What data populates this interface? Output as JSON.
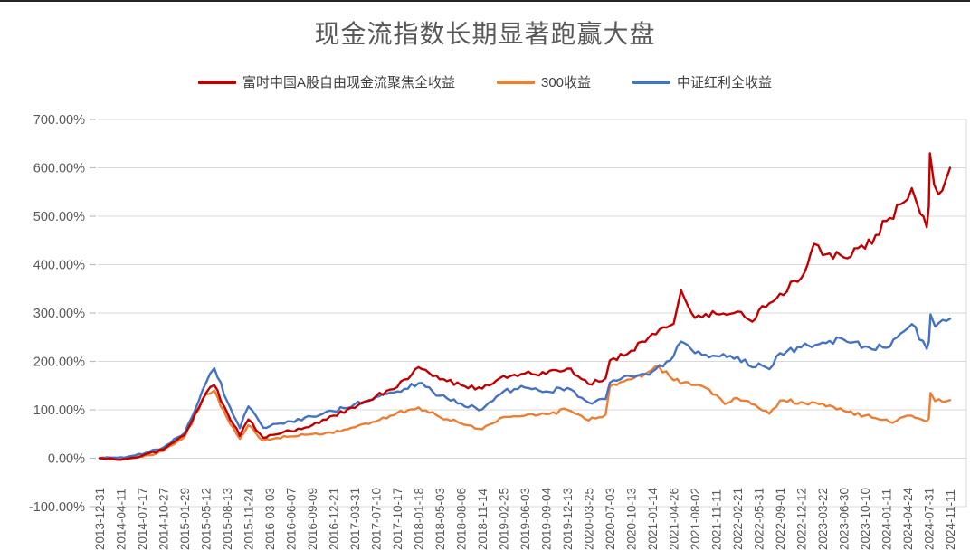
{
  "title": "现金流指数长期显著跑赢大盘",
  "colors": {
    "background": "#FFFFFF",
    "grid": "#D9D9D9",
    "tick": "#BFBFBF",
    "text": "#595959",
    "red_series": "#C00000",
    "orange_series": "#ED7D31",
    "blue_series": "#4472C4"
  },
  "legend": [
    {
      "label": "富时中国A股自由现金流聚焦全收益",
      "color": "#C00000"
    },
    {
      "label": "300收益",
      "color": "#ED7D31"
    },
    {
      "label": "中证红利全收益",
      "color": "#4472C4"
    }
  ],
  "chart_data": {
    "type": "line",
    "title": "现金流指数长期显著跑赢大盘",
    "xlabel": "",
    "ylabel": "",
    "ylim": [
      -100,
      700
    ],
    "grid": "horizontal",
    "legend_position": "top",
    "y_ticks": [
      "700.00%",
      "600.00%",
      "500.00%",
      "400.00%",
      "300.00%",
      "200.00%",
      "100.00%",
      "0.00%",
      "-100.00%"
    ],
    "y_tick_values": [
      700,
      600,
      500,
      400,
      300,
      200,
      100,
      0,
      -100
    ],
    "x_labels": [
      "2013-12-31",
      "2014-04-11",
      "2014-07-17",
      "2014-10-27",
      "2015-01-29",
      "2015-05-12",
      "2015-08-13",
      "2015-11-24",
      "2016-03-03",
      "2016-06-07",
      "2016-09-09",
      "2016-12-21",
      "2017-03-31",
      "2017-07-10",
      "2017-10-17",
      "2018-01-18",
      "2018-05-03",
      "2018-08-06",
      "2018-11-14",
      "2019-02-25",
      "2019-06-03",
      "2019-09-04",
      "2019-12-13",
      "2020-03-25",
      "2020-07-03",
      "2020-10-13",
      "2021-01-14",
      "2021-04-26",
      "2021-08-02",
      "2021-11-11",
      "2022-02-21",
      "2022-05-31",
      "2022-09-01",
      "2022-12-12",
      "2023-03-22",
      "2023-06-30",
      "2023-10-10",
      "2024-01-11",
      "2024-04-24",
      "2024-07-31",
      "2024-11-11"
    ],
    "unit": "percent",
    "series": [
      {
        "name": "富时中国A股自由现金流聚焦全收益",
        "color": "#C00000",
        "values": [
          0,
          -3,
          5,
          18,
          48,
          134,
          95,
          80,
          48,
          56,
          68,
          88,
          104,
          128,
          147,
          188,
          163,
          151,
          144,
          170,
          175,
          174,
          185,
          153,
          202,
          222,
          257,
          278,
          290,
          298,
          303,
          305,
          340,
          372,
          420,
          415,
          433,
          490,
          535,
          520,
          600
        ],
        "extra_points": [
          [
            5.4,
            151
          ],
          [
            6.6,
            46
          ],
          [
            7.7,
            42
          ],
          [
            23.8,
            165
          ],
          [
            27.35,
            347
          ],
          [
            30.7,
            282
          ],
          [
            33.6,
            443
          ],
          [
            38.2,
            558
          ],
          [
            38.6,
            505
          ],
          [
            38.9,
            477
          ],
          [
            39.05,
            630
          ],
          [
            39.25,
            565
          ],
          [
            39.45,
            545
          ]
        ]
      },
      {
        "name": "300收益",
        "color": "#ED7D31",
        "values": [
          0,
          -4,
          3,
          15,
          44,
          132,
          83,
          68,
          38,
          45,
          50,
          52,
          64,
          76,
          94,
          105,
          85,
          72,
          60,
          85,
          88,
          91,
          100,
          78,
          148,
          163,
          183,
          161,
          151,
          131,
          124,
          104,
          119,
          116,
          113,
          98,
          88,
          80,
          88,
          82,
          120
        ],
        "extra_points": [
          [
            5.4,
            140
          ],
          [
            6.6,
            40
          ],
          [
            7.7,
            36
          ],
          [
            23.8,
            90
          ],
          [
            26.3,
            190
          ],
          [
            29.4,
            112
          ],
          [
            31.5,
            92
          ],
          [
            37.3,
            73
          ],
          [
            38.9,
            76
          ],
          [
            39.08,
            135
          ],
          [
            39.3,
            118
          ]
        ]
      },
      {
        "name": "中证红利全收益",
        "color": "#4472C4",
        "values": [
          0,
          2,
          8,
          22,
          52,
          155,
          118,
          107,
          66,
          76,
          86,
          97,
          112,
          126,
          138,
          155,
          129,
          113,
          101,
          138,
          146,
          138,
          145,
          115,
          156,
          169,
          179,
          211,
          217,
          211,
          210,
          196,
          217,
          229,
          239,
          245,
          231,
          228,
          268,
          240,
          288
        ],
        "extra_points": [
          [
            5.4,
            186
          ],
          [
            6.6,
            62
          ],
          [
            7.7,
            63
          ],
          [
            23.8,
            122
          ],
          [
            27.35,
            241
          ],
          [
            30.7,
            188
          ],
          [
            31.5,
            184
          ],
          [
            38.2,
            277
          ],
          [
            38.9,
            226
          ],
          [
            39.08,
            297
          ],
          [
            39.3,
            272
          ]
        ]
      }
    ]
  }
}
